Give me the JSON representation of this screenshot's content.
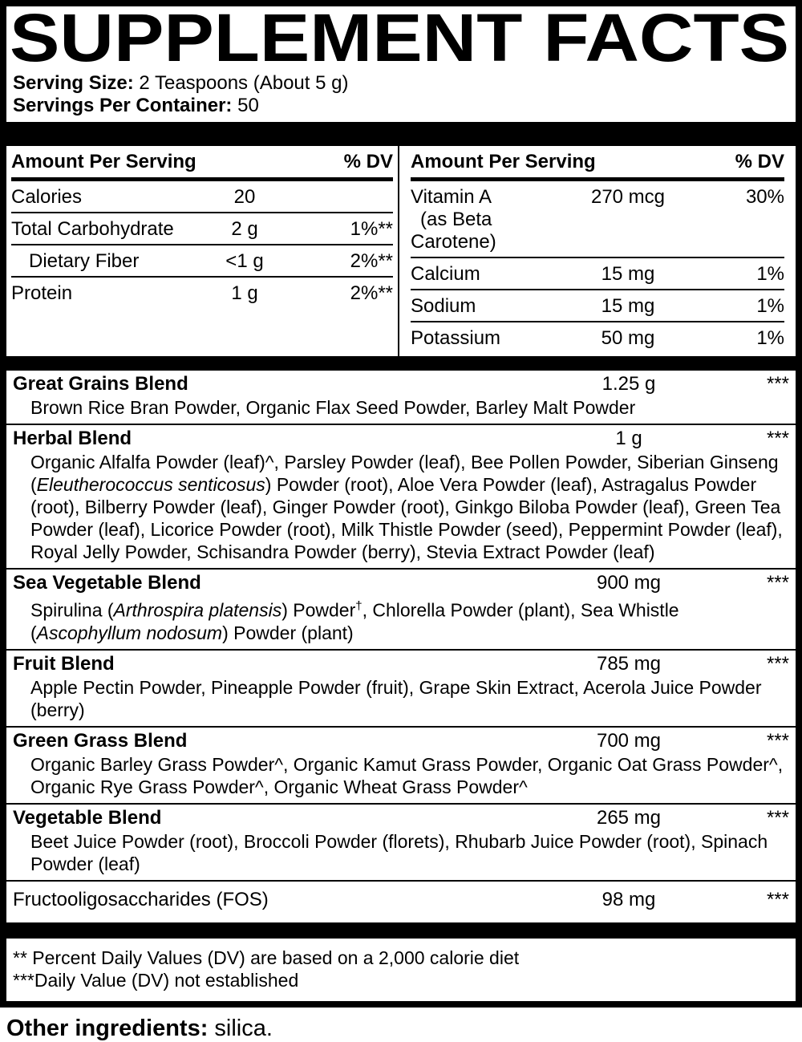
{
  "colors": {
    "ink": "#000000",
    "paper": "#ffffff"
  },
  "title": "SUPPLEMENT FACTS",
  "serving": {
    "size_label": "Serving Size:",
    "size_value": "2 Teaspoons (About 5 g)",
    "per_container_label": "Servings Per Container:",
    "per_container_value": "50"
  },
  "headers": {
    "amount": "Amount Per Serving",
    "dv": "% DV"
  },
  "left_table": {
    "rows": [
      {
        "name": "Calories",
        "amount": "20",
        "dv": ""
      },
      {
        "name": "Total Carbohydrate",
        "amount": "2 g",
        "dv": "1%**"
      },
      {
        "name": "Dietary Fiber",
        "amount": "<1 g",
        "dv": "2%**"
      },
      {
        "name": "Protein",
        "amount": "1 g",
        "dv": "2%**"
      }
    ]
  },
  "right_table": {
    "rows": [
      {
        "name": "Vitamin A",
        "sub": "(as Beta Carotene)",
        "amount": "270 mcg",
        "dv": "30%"
      },
      {
        "name": "Calcium",
        "sub": "",
        "amount": "15 mg",
        "dv": "1%"
      },
      {
        "name": "Sodium",
        "sub": "",
        "amount": "15 mg",
        "dv": "1%"
      },
      {
        "name": "Potassium",
        "sub": "",
        "amount": "50 mg",
        "dv": "1%"
      }
    ]
  },
  "blends": [
    {
      "name": "Great Grains Blend",
      "amount": "1.25 g",
      "dv": "***",
      "desc": [
        {
          "t": "Brown Rice Bran Powder, Organic Flax Seed Powder, Barley Malt Powder"
        }
      ]
    },
    {
      "name": "Herbal Blend",
      "amount": "1 g",
      "dv": "***",
      "desc": [
        {
          "t": "Organic Alfalfa Powder (leaf)^, Parsley Powder (leaf), Bee Pollen Powder, Siberian Ginseng ("
        },
        {
          "i": "Eleutherococcus senticosus"
        },
        {
          "t": ") Powder (root), Aloe Vera Powder (leaf), Astragalus Powder (root), Bilberry Powder (leaf), Ginger Powder (root), Ginkgo Biloba Powder (leaf), Green Tea Powder (leaf), Licorice Powder (root), Milk Thistle Powder (seed), Peppermint Powder (leaf), Royal Jelly Powder, Schisandra Powder (berry), Stevia Extract Powder (leaf)"
        }
      ]
    },
    {
      "name": "Sea Vegetable Blend",
      "amount": "900 mg",
      "dv": "***",
      "desc": [
        {
          "t": "Spirulina ("
        },
        {
          "i": "Arthrospira platensis"
        },
        {
          "t": ") Powder"
        },
        {
          "sup": "†"
        },
        {
          "t": ", Chlorella Powder (plant), Sea Whistle ("
        },
        {
          "i": "Ascophyllum nodosum"
        },
        {
          "t": ") Powder (plant)"
        }
      ]
    },
    {
      "name": "Fruit Blend",
      "amount": "785 mg",
      "dv": "***",
      "desc": [
        {
          "t": "Apple Pectin Powder, Pineapple Powder (fruit), Grape Skin Extract, Acerola Juice Powder (berry)"
        }
      ]
    },
    {
      "name": "Green Grass Blend",
      "amount": "700 mg",
      "dv": "***",
      "desc": [
        {
          "t": "Organic Barley Grass Powder^, Organic Kamut Grass Powder, Organic Oat Grass Powder^, Organic Rye Grass Powder^, Organic Wheat Grass Powder^"
        }
      ]
    },
    {
      "name": "Vegetable Blend",
      "amount": "265 mg",
      "dv": "***",
      "desc": [
        {
          "t": "Beet Juice Powder (root), Broccoli Powder (florets), Rhubarb Juice Powder (root), Spinach Powder (leaf)"
        }
      ]
    },
    {
      "name": "Fructooligosaccharides (FOS)",
      "amount": "98 mg",
      "dv": "***",
      "desc": []
    }
  ],
  "footnotes": {
    "dv_basis": "** Percent Daily Values (DV) are based on a 2,000 calorie diet",
    "dv_not_established": "***Daily Value (DV) not established"
  },
  "other_ingredients": {
    "label": "Other ingredients:",
    "value": " silica."
  }
}
